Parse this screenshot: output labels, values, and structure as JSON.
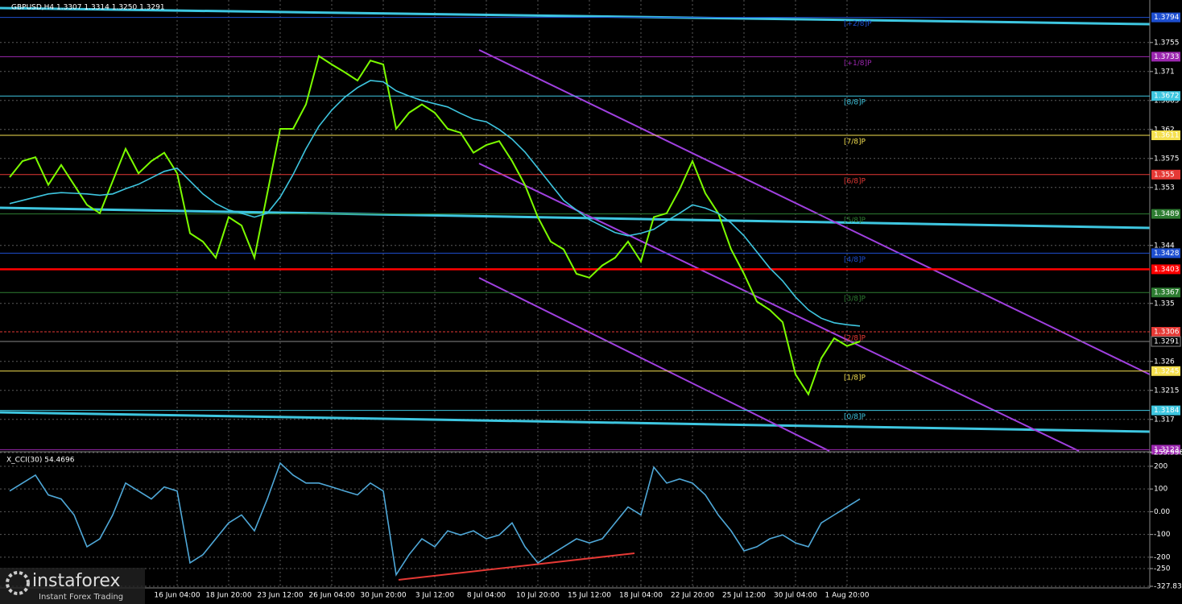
{
  "chart_data": [
    {
      "type": "line",
      "title": "GBPUSD,H4 1.3307 1.3314 1.3250 1.3291",
      "categories": [
        null,
        null,
        null,
        null,
        null,
        null,
        null,
        null,
        null,
        null,
        null,
        null,
        null,
        "16 Jun 04:00",
        null,
        null,
        null,
        "18 Jun 20:00",
        null,
        null,
        null,
        "23 Jun 12:00",
        null,
        null,
        null,
        "26 Jun 04:00",
        null,
        null,
        null,
        "30 Jun 20:00",
        null,
        null,
        null,
        "3 Jul 12:00",
        null,
        null,
        null,
        "8 Jul 04:00",
        null,
        null,
        null,
        "10 Jul 20:00",
        null,
        null,
        null,
        "15 Jul 12:00",
        null,
        null,
        null,
        "18 Jul 04:00",
        null,
        null,
        null,
        "22 Jul 20:00",
        null,
        null,
        null,
        "25 Jul 12:00",
        null,
        null,
        null,
        "30 Jul 04:00",
        null,
        null,
        null,
        "1 Aug 20:00",
        null
      ],
      "series": [
        {
          "color": "#7cfc00",
          "values": [
            1.3546,
            1.3571,
            1.3577,
            1.3534,
            1.3565,
            1.3534,
            1.3503,
            1.349,
            1.354,
            1.359,
            1.3552,
            1.3571,
            1.3584,
            1.3552,
            1.3459,
            1.3446,
            1.3421,
            1.3484,
            1.3471,
            1.3421,
            1.3521,
            1.3621,
            1.3621,
            1.3659,
            1.3734,
            1.3721,
            1.3709,
            1.3696,
            1.3727,
            1.3721,
            1.3621,
            1.3646,
            1.3659,
            1.3646,
            1.3621,
            1.3615,
            1.3584,
            1.3596,
            1.3602,
            1.3571,
            1.3534,
            1.3484,
            1.3446,
            1.3434,
            1.3396,
            1.339,
            1.3409,
            1.3421,
            1.3446,
            1.3415,
            1.3484,
            1.349,
            1.3527,
            1.3571,
            1.3521,
            1.349,
            1.3434,
            1.3396,
            1.3353,
            1.334,
            1.3321,
            1.324,
            1.3209,
            1.3265,
            1.3296,
            1.3284,
            1.3291
          ]
        },
        {
          "color": "#3ec6e0",
          "values": [
            1.3505,
            1.351,
            1.3515,
            1.352,
            1.3522,
            1.3521,
            1.352,
            1.3518,
            1.352,
            1.3528,
            1.3535,
            1.3545,
            1.3555,
            1.356,
            1.354,
            1.352,
            1.3505,
            1.3495,
            1.349,
            1.3484,
            1.349,
            1.3515,
            1.355,
            1.359,
            1.3625,
            1.365,
            1.367,
            1.3685,
            1.3696,
            1.3694,
            1.368,
            1.3672,
            1.3665,
            1.366,
            1.3655,
            1.3645,
            1.3636,
            1.3632,
            1.362,
            1.3605,
            1.3585,
            1.356,
            1.3535,
            1.351,
            1.3495,
            1.348,
            1.347,
            1.346,
            1.3455,
            1.3459,
            1.3465,
            1.3478,
            1.349,
            1.3503,
            1.3498,
            1.349,
            1.3475,
            1.3455,
            1.343,
            1.3405,
            1.3385,
            1.336,
            1.334,
            1.3327,
            1.332,
            1.3317,
            1.3315
          ]
        }
      ],
      "ylim": [
        1.3121,
        1.3821
      ],
      "yticks": [
        1.3755,
        1.371,
        1.3665,
        1.362,
        1.3575,
        1.353,
        1.344,
        1.335,
        1.326,
        1.3215,
        1.317
      ],
      "levels": [
        {
          "label": "[+2/8]P",
          "value": 1.3794,
          "color": "#1e4fd0"
        },
        {
          "label": "[+1/8]P",
          "value": 1.3733,
          "color": "#9c27b0"
        },
        {
          "label": "[8/8]P",
          "value": 1.3672,
          "color": "#3ec6e0"
        },
        {
          "label": "[7/8]P",
          "value": 1.3611,
          "color": "#f5e050"
        },
        {
          "label": "[6/8]P",
          "value": 1.355,
          "color": "#e53935"
        },
        {
          "label": "[5/8]P",
          "value": 1.3489,
          "color": "#2e7d32"
        },
        {
          "label": "[4/8]P",
          "value": 1.3428,
          "color": "#1e4fd0"
        },
        {
          "label": "[3/8]P",
          "value": 1.3367,
          "color": "#2e7d32"
        },
        {
          "label": "[2/8]P",
          "value": 1.3306,
          "color": "#e53935"
        },
        {
          "label": "[1/8]P",
          "value": 1.3245,
          "color": "#f5e050"
        },
        {
          "label": "[0/8]P",
          "value": 1.3184,
          "color": "#3ec6e0"
        },
        {
          "value": 1.3123,
          "color": "#9c27b0"
        },
        {
          "value": 1.3403,
          "color": "#ff0000"
        }
      ],
      "last_price": 1.3291,
      "grid": true
    },
    {
      "type": "line",
      "title": "X_CCI(30) 54.4696",
      "series": [
        {
          "color": "#4fa8d8",
          "values": [
            91,
            126,
            161,
            74,
            56,
            -14,
            -154,
            -119,
            -14,
            126,
            91,
            56,
            109,
            91,
            -225,
            -189,
            -119,
            -49,
            -14,
            -84,
            56,
            214,
            161,
            126,
            126,
            109,
            91,
            74,
            126,
            91,
            -277,
            -189,
            -119,
            -154,
            -84,
            -102,
            -84,
            -119,
            -102,
            -49,
            -154,
            -225,
            -189,
            -154,
            -119,
            -137,
            -119,
            -49,
            21,
            -14,
            196,
            126,
            144,
            126,
            74,
            -14,
            -84,
            -172,
            -154,
            -119,
            -102,
            -137,
            -154,
            -49,
            -14,
            21,
            56
          ]
        }
      ],
      "ylim": [
        -327.832,
        259.9969
      ],
      "yticks": [
        259.9969,
        200,
        100,
        {
          "value": 0,
          "label": "0.00"
        },
        -100,
        -200,
        -250,
        -327.832
      ],
      "grid": true
    }
  ],
  "watermark": {
    "brand": "instaforex",
    "tagline": "Instant Forex Trading"
  }
}
